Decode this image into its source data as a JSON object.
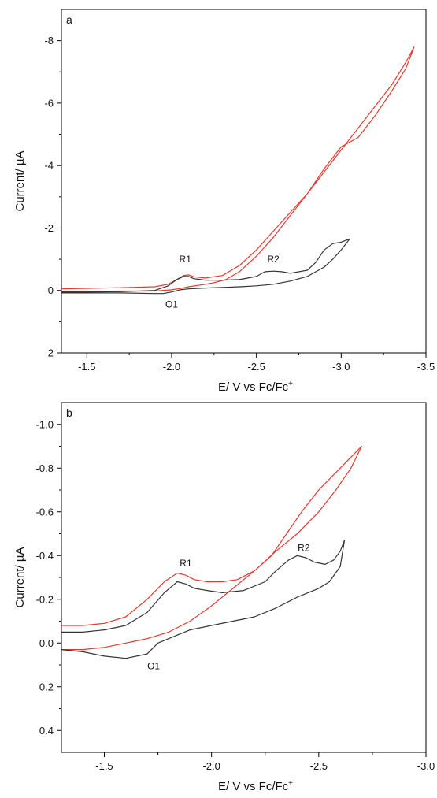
{
  "colors": {
    "red": "#e8362f",
    "black": "#333333",
    "axis": "#000000"
  },
  "chart_data": [
    {
      "type": "line",
      "panel_label": "a",
      "xlabel": "E/ V vs Fc/Fc",
      "xlabel_superscript": "+",
      "ylabel": "Current/ µA",
      "xlim": [
        -1.35,
        -3.5
      ],
      "ylim": [
        -9,
        2
      ],
      "xticks": [
        {
          "v": -1.5,
          "label": "-1.5"
        },
        {
          "v": -2.0,
          "label": "-2.0"
        },
        {
          "v": -2.5,
          "label": "-2.5"
        },
        {
          "v": -3.0,
          "label": "-3.0"
        },
        {
          "v": -3.5,
          "label": "-3.5"
        }
      ],
      "yticks": [
        {
          "v": -8,
          "label": "-8"
        },
        {
          "v": -6,
          "label": "-6"
        },
        {
          "v": -4,
          "label": "-4"
        },
        {
          "v": -2,
          "label": "-2"
        },
        {
          "v": 0,
          "label": "0"
        },
        {
          "v": 2,
          "label": "2"
        }
      ],
      "series": [
        {
          "color": "red",
          "x": [
            -1.35,
            -1.5,
            -1.7,
            -1.9,
            -1.98,
            -2.03,
            -2.07,
            -2.1,
            -2.13,
            -2.2,
            -2.3,
            -2.4,
            -2.5,
            -2.6,
            -2.7,
            -2.8,
            -2.9,
            -3.0,
            -3.1,
            -3.2,
            -3.3,
            -3.38,
            -3.43,
            -3.38,
            -3.3,
            -3.2,
            -3.1,
            -3.0,
            -2.9,
            -2.8,
            -2.7,
            -2.6,
            -2.5,
            -2.4,
            -2.32,
            -2.25,
            -2.2,
            -2.1,
            -2.05,
            -2.0,
            -1.9,
            -1.7,
            -1.5,
            -1.35
          ],
          "y": [
            -0.05,
            -0.07,
            -0.09,
            -0.12,
            -0.2,
            -0.35,
            -0.48,
            -0.5,
            -0.44,
            -0.4,
            -0.48,
            -0.8,
            -1.3,
            -1.9,
            -2.5,
            -3.1,
            -3.8,
            -4.5,
            -5.2,
            -5.9,
            -6.6,
            -7.3,
            -7.8,
            -7.1,
            -6.4,
            -5.6,
            -4.9,
            -4.6,
            -3.9,
            -3.1,
            -2.4,
            -1.7,
            -1.1,
            -0.6,
            -0.35,
            -0.25,
            -0.2,
            -0.12,
            -0.06,
            -0.02,
            0.02,
            0.02,
            0.03,
            0.03
          ]
        },
        {
          "color": "black",
          "x": [
            -1.35,
            -1.5,
            -1.7,
            -1.9,
            -1.98,
            -2.03,
            -2.07,
            -2.1,
            -2.13,
            -2.2,
            -2.3,
            -2.4,
            -2.5,
            -2.55,
            -2.6,
            -2.65,
            -2.7,
            -2.8,
            -2.85,
            -2.9,
            -2.95,
            -3.0,
            -3.05,
            -3.0,
            -2.95,
            -2.9,
            -2.8,
            -2.7,
            -2.6,
            -2.5,
            -2.4,
            -2.3,
            -2.2,
            -2.1,
            -2.05,
            -2.0,
            -1.95,
            -1.9,
            -1.7,
            -1.5,
            -1.35
          ],
          "y": [
            0.05,
            0.05,
            0.04,
            0.0,
            -0.15,
            -0.35,
            -0.45,
            -0.45,
            -0.38,
            -0.33,
            -0.33,
            -0.35,
            -0.45,
            -0.6,
            -0.62,
            -0.6,
            -0.55,
            -0.65,
            -0.9,
            -1.3,
            -1.5,
            -1.55,
            -1.65,
            -1.3,
            -1.0,
            -0.75,
            -0.45,
            -0.3,
            -0.2,
            -0.15,
            -0.12,
            -0.1,
            -0.08,
            -0.05,
            -0.02,
            0.05,
            0.1,
            0.1,
            0.08,
            0.08,
            0.08
          ]
        }
      ],
      "annotations": [
        {
          "text": "R1",
          "x": -2.08,
          "y": -0.9
        },
        {
          "text": "R2",
          "x": -2.6,
          "y": -0.9
        },
        {
          "text": "O1",
          "x": -2.0,
          "y": 0.55
        }
      ]
    },
    {
      "type": "line",
      "panel_label": "b",
      "xlabel": "E/ V vs Fc/Fc",
      "xlabel_superscript": "+",
      "ylabel": "Current/ µA",
      "xlim": [
        -1.3,
        -3.0
      ],
      "ylim": [
        -1.1,
        0.5
      ],
      "xticks": [
        {
          "v": -1.5,
          "label": "-1.5"
        },
        {
          "v": -2.0,
          "label": "-2.0"
        },
        {
          "v": -2.5,
          "label": "-2.5"
        },
        {
          "v": -3.0,
          "label": "-3.0"
        }
      ],
      "yticks": [
        {
          "v": -1.0,
          "label": "-1.0"
        },
        {
          "v": -0.8,
          "label": "-0.8"
        },
        {
          "v": -0.6,
          "label": "-0.6"
        },
        {
          "v": -0.4,
          "label": "-0.4"
        },
        {
          "v": -0.2,
          "label": "-0.2"
        },
        {
          "v": 0.0,
          "label": "0.0"
        },
        {
          "v": 0.2,
          "label": "0.2"
        },
        {
          "v": 0.4,
          "label": "0.4"
        }
      ],
      "series": [
        {
          "color": "red",
          "x": [
            -1.3,
            -1.4,
            -1.5,
            -1.6,
            -1.7,
            -1.78,
            -1.84,
            -1.88,
            -1.92,
            -1.98,
            -2.05,
            -2.12,
            -2.2,
            -2.28,
            -2.35,
            -2.42,
            -2.5,
            -2.58,
            -2.65,
            -2.7,
            -2.65,
            -2.58,
            -2.5,
            -2.4,
            -2.3,
            -2.2,
            -2.1,
            -2.0,
            -1.9,
            -1.8,
            -1.7,
            -1.65,
            -1.6,
            -1.5,
            -1.4,
            -1.3
          ],
          "y": [
            -0.08,
            -0.08,
            -0.09,
            -0.12,
            -0.2,
            -0.28,
            -0.32,
            -0.31,
            -0.29,
            -0.28,
            -0.28,
            -0.29,
            -0.33,
            -0.4,
            -0.5,
            -0.6,
            -0.7,
            -0.78,
            -0.85,
            -0.9,
            -0.8,
            -0.7,
            -0.6,
            -0.5,
            -0.42,
            -0.33,
            -0.25,
            -0.17,
            -0.1,
            -0.05,
            -0.02,
            -0.01,
            0.0,
            0.02,
            0.03,
            0.03
          ]
        },
        {
          "color": "black",
          "x": [
            -1.3,
            -1.4,
            -1.5,
            -1.6,
            -1.7,
            -1.78,
            -1.84,
            -1.88,
            -1.92,
            -1.98,
            -2.05,
            -2.15,
            -2.25,
            -2.3,
            -2.36,
            -2.4,
            -2.44,
            -2.48,
            -2.53,
            -2.57,
            -2.6,
            -2.62,
            -2.6,
            -2.55,
            -2.5,
            -2.4,
            -2.3,
            -2.2,
            -2.1,
            -2.0,
            -1.9,
            -1.85,
            -1.8,
            -1.75,
            -1.7,
            -1.6,
            -1.5,
            -1.4,
            -1.3
          ],
          "y": [
            -0.05,
            -0.05,
            -0.06,
            -0.08,
            -0.14,
            -0.23,
            -0.28,
            -0.27,
            -0.25,
            -0.24,
            -0.23,
            -0.24,
            -0.28,
            -0.33,
            -0.38,
            -0.4,
            -0.39,
            -0.37,
            -0.36,
            -0.38,
            -0.42,
            -0.47,
            -0.35,
            -0.28,
            -0.25,
            -0.21,
            -0.16,
            -0.12,
            -0.1,
            -0.08,
            -0.06,
            -0.04,
            -0.02,
            0.0,
            0.05,
            0.07,
            0.06,
            0.04,
            0.03
          ]
        }
      ],
      "annotations": [
        {
          "text": "R1",
          "x": -1.88,
          "y": -0.35
        },
        {
          "text": "R2",
          "x": -2.43,
          "y": -0.42
        },
        {
          "text": "O1",
          "x": -1.73,
          "y": 0.12
        }
      ]
    }
  ]
}
